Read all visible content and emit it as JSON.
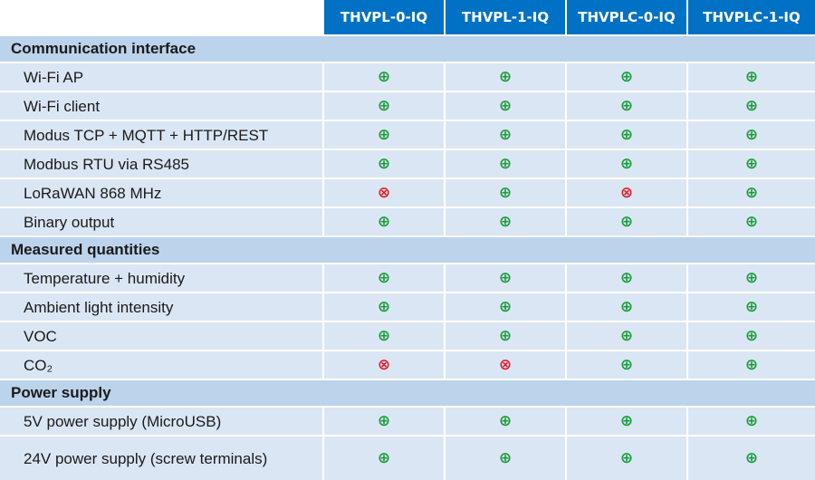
{
  "columns": [
    "THVPL-0-IQ",
    "THVPL-1-IQ",
    "THVPLC-0-IQ",
    "THVPLC-1-IQ"
  ],
  "symbols": {
    "yes": {
      "glyph": "⊕",
      "icon": "supported-icon",
      "color": "#1a9e3a"
    },
    "no": {
      "glyph": "⊗",
      "icon": "not-supported-icon",
      "color": "#e3202b"
    }
  },
  "sections": [
    {
      "title": "Communication interface",
      "rows": [
        {
          "label": "Wi-Fi AP",
          "values": [
            "yes",
            "yes",
            "yes",
            "yes"
          ]
        },
        {
          "label": "Wi-Fi client",
          "values": [
            "yes",
            "yes",
            "yes",
            "yes"
          ]
        },
        {
          "label": "Modus TCP + MQTT + HTTP/REST",
          "values": [
            "yes",
            "yes",
            "yes",
            "yes"
          ]
        },
        {
          "label": "Modbus RTU via RS485",
          "values": [
            "yes",
            "yes",
            "yes",
            "yes"
          ]
        },
        {
          "label": "LoRaWAN 868 MHz",
          "values": [
            "no",
            "yes",
            "no",
            "yes"
          ]
        },
        {
          "label": "Binary output",
          "values": [
            "yes",
            "yes",
            "yes",
            "yes"
          ]
        }
      ]
    },
    {
      "title": "Measured quantities",
      "rows": [
        {
          "label": "Temperature + humidity",
          "values": [
            "yes",
            "yes",
            "yes",
            "yes"
          ]
        },
        {
          "label": "Ambient light intensity",
          "values": [
            "yes",
            "yes",
            "yes",
            "yes"
          ]
        },
        {
          "label": "VOC",
          "values": [
            "yes",
            "yes",
            "yes",
            "yes"
          ]
        },
        {
          "label": "CO₂",
          "values": [
            "no",
            "no",
            "yes",
            "yes"
          ]
        }
      ]
    },
    {
      "title": "Power supply",
      "rows": [
        {
          "label": "5V power supply (MicroUSB)",
          "values": [
            "yes",
            "yes",
            "yes",
            "yes"
          ]
        },
        {
          "label": "24V power supply (screw terminals)",
          "values": [
            "yes",
            "yes",
            "yes",
            "yes"
          ]
        }
      ]
    }
  ]
}
